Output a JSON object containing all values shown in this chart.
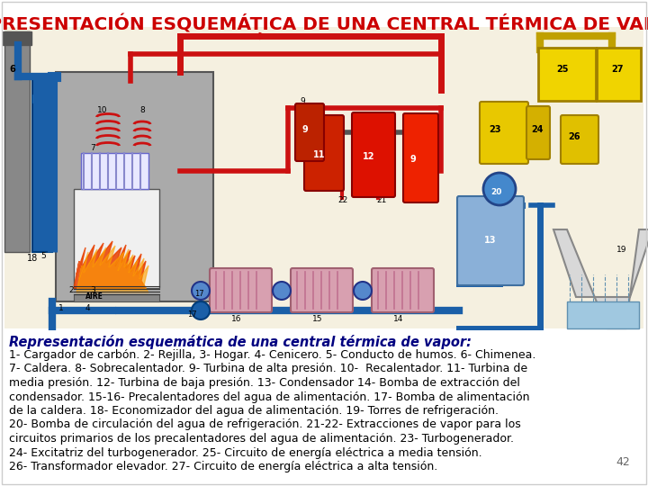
{
  "title": "REPRESENTACIÓN ESQUEMÁTICA DE UNA CENTRAL TÉRMICA DE VAPOR",
  "title_color": "#cc0000",
  "title_fontsize": 14.5,
  "title_bold": true,
  "subtitle": "Representación esquemática de una central térmica de vapor:",
  "subtitle_color": "#000080",
  "subtitle_fontsize": 10.5,
  "subtitle_bold": true,
  "subtitle_italic": true,
  "body_text_lines": [
    "1- Cargador de carbón. 2- Rejilla, 3- Hogar. 4- Cenicero. 5- Conducto de humos. 6- Chimenea.",
    "7- Caldera. 8- Sobrecalentador. 9- Turbina de alta presión. 10-  Recalentador. 11- Turbina de",
    "media presión. 12- Turbina de baja presión. 13- Condensador 14- Bomba de extracción del",
    "condensador. 15-16- Precalentadores del agua de alimentación. 17- Bomba de alimentación",
    "de la caldera. 18- Economizador del agua de alimentación. 19- Torres de refrigeración.",
    "20- Bomba de circulación del agua de refrigeración. 21-22- Extracciones de vapor para los",
    "circuitos primarios de los precalentadores del agua de alimentación. 23- Turbogenerador.",
    "24- Excitatriz del turbogenerador. 25- Circuito de energía eléctrica a media tensión.",
    "26- Transformador elevador. 27- Circuito de energía eléctrica a alta tensión."
  ],
  "bold_numbers": [
    "1-",
    "2-",
    "3-",
    "4-",
    "5-",
    "6-",
    "7-",
    "8-",
    "9-",
    "10-",
    "11-",
    "12-",
    "13-",
    "14-",
    "15-16-",
    "17-",
    "18-",
    "19-",
    "20-",
    "21-22-",
    "23-",
    "24-",
    "25-",
    "26-",
    "27-"
  ],
  "body_color": "#000000",
  "body_fontsize": 9.0,
  "page_number": "42",
  "background_color": "#ffffff",
  "image_bg_color": "#f5f0e0",
  "fig_width": 7.2,
  "fig_height": 5.4,
  "dpi": 100
}
